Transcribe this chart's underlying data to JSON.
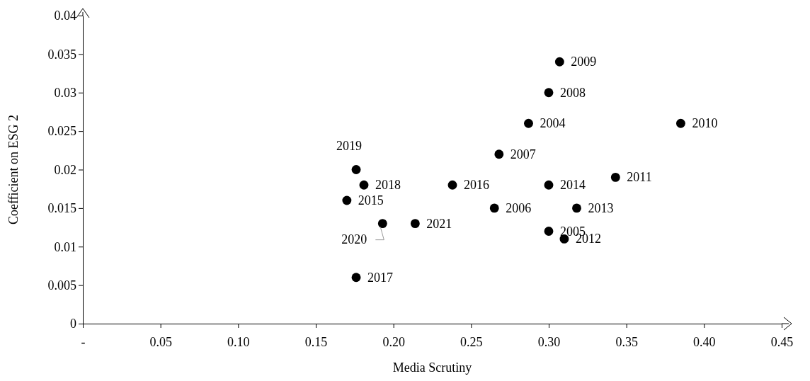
{
  "chart_data": {
    "type": "scatter",
    "xlabel": "Media Scrutiny",
    "ylabel": "Coefficient on ESG 2",
    "x": [
      0.287,
      0.3,
      0.265,
      0.268,
      0.3,
      0.307,
      0.385,
      0.343,
      0.31,
      0.318,
      0.3,
      0.17,
      0.238,
      0.176,
      0.181,
      0.176,
      0.193,
      0.214
    ],
    "values": [
      0.026,
      0.012,
      0.015,
      0.022,
      0.03,
      0.034,
      0.026,
      0.019,
      0.011,
      0.015,
      0.018,
      0.016,
      0.018,
      0.006,
      0.018,
      0.02,
      0.013,
      0.013
    ],
    "annotations": [
      {
        "text": "2004",
        "x": 0.287,
        "y": 0.026
      },
      {
        "text": "2005",
        "x": 0.3,
        "y": 0.012
      },
      {
        "text": "2006",
        "x": 0.265,
        "y": 0.015
      },
      {
        "text": "2007",
        "x": 0.268,
        "y": 0.022
      },
      {
        "text": "2008",
        "x": 0.3,
        "y": 0.03
      },
      {
        "text": "2009",
        "x": 0.307,
        "y": 0.034
      },
      {
        "text": "2010",
        "x": 0.385,
        "y": 0.026
      },
      {
        "text": "2011",
        "x": 0.343,
        "y": 0.019
      },
      {
        "text": "2012",
        "x": 0.31,
        "y": 0.011
      },
      {
        "text": "2013",
        "x": 0.318,
        "y": 0.015
      },
      {
        "text": "2014",
        "x": 0.3,
        "y": 0.018
      },
      {
        "text": "2015",
        "x": 0.17,
        "y": 0.016
      },
      {
        "text": "2016",
        "x": 0.238,
        "y": 0.018
      },
      {
        "text": "2017",
        "x": 0.176,
        "y": 0.006
      },
      {
        "text": "2018",
        "x": 0.181,
        "y": 0.018
      },
      {
        "text": "2019",
        "x": 0.176,
        "y": 0.02
      },
      {
        "text": "2020",
        "x": 0.193,
        "y": 0.013
      },
      {
        "text": "2021",
        "x": 0.214,
        "y": 0.013
      }
    ],
    "color": "#000000",
    "marker": "circle",
    "grid": false,
    "xlim": [
      0,
      0.45
    ],
    "xticks": [
      {
        "value": 0,
        "label": "-"
      },
      {
        "value": 0.05,
        "label": "0.05"
      },
      {
        "value": 0.1,
        "label": "0.10"
      },
      {
        "value": 0.15,
        "label": "0.15"
      },
      {
        "value": 0.2,
        "label": "0.20"
      },
      {
        "value": 0.25,
        "label": "0.25"
      },
      {
        "value": 0.3,
        "label": "0.30"
      },
      {
        "value": 0.35,
        "label": "0.35"
      },
      {
        "value": 0.4,
        "label": "0.40"
      },
      {
        "value": 0.45,
        "label": "0.45"
      }
    ],
    "ylim": [
      0,
      0.04
    ],
    "yticks": [
      0,
      0.005,
      0.01,
      0.015,
      0.02,
      0.025,
      0.03,
      0.035,
      0.04
    ]
  }
}
